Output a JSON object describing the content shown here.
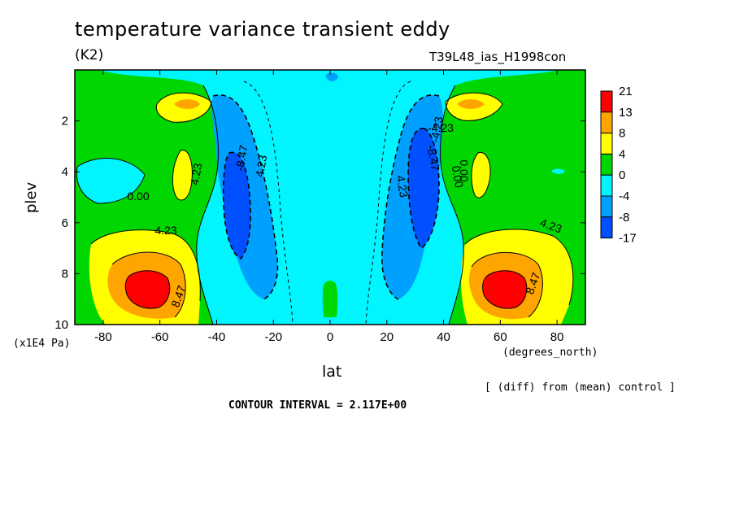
{
  "header": {
    "title": "temperature variance transient eddy",
    "units": "(K2)",
    "run_id": "T39L48_ias_H1998con"
  },
  "footer": {
    "comparison_note": "[ (diff) from (mean) control ]",
    "contour_interval": "CONTOUR INTERVAL = 2.117E+00"
  },
  "chart_data": {
    "type": "heatmap",
    "title": "temperature variance transient eddy",
    "xlabel": "lat",
    "xunits": "(degrees_north)",
    "ylabel": "plev",
    "yunits": "(x1E4 Pa)",
    "xlim": [
      -90,
      90
    ],
    "ylim": [
      10,
      0
    ],
    "x_ticks": [
      -80,
      -60,
      -40,
      -20,
      0,
      20,
      40,
      60,
      80
    ],
    "y_ticks": [
      2,
      4,
      6,
      8,
      10
    ],
    "colorbar": {
      "labels": [
        "21",
        "13",
        "8",
        "4",
        "0",
        "-4",
        "-8",
        "-17"
      ],
      "colors": [
        "#ff0000",
        "#ffa500",
        "#ffff00",
        "#00d700",
        "#00f5ff",
        "#00a0ff",
        "#0050ff"
      ]
    },
    "contour_labels": [
      "0.00",
      "4.23",
      "-8.47",
      "4.23",
      "8.47",
      "4.23",
      "-8.47",
      "-4.23",
      "0.00",
      "4.23",
      "8.47",
      "0.00",
      "-4.23",
      "4.23"
    ],
    "grid": false
  }
}
